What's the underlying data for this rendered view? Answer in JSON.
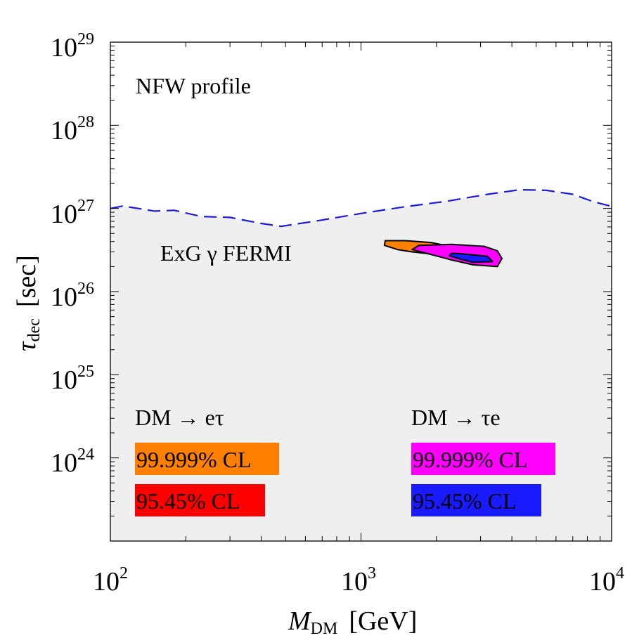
{
  "chart_data": {
    "type": "contour",
    "title": "",
    "xlabel": {
      "main": "M",
      "sub": "DM",
      "unit": "[GeV]"
    },
    "ylabel": {
      "main": "τ",
      "sub": "dec",
      "unit": "[sec]"
    },
    "xscale": "log",
    "yscale": "log",
    "xlim": [
      100,
      10000
    ],
    "ylim": [
      1e+23,
      1e+29
    ],
    "x_ticks": [
      {
        "base": "10",
        "exp": "2"
      },
      {
        "base": "10",
        "exp": "3"
      },
      {
        "base": "10",
        "exp": "4"
      }
    ],
    "y_ticks": [
      {
        "base": "10",
        "exp": "24"
      },
      {
        "base": "10",
        "exp": "25"
      },
      {
        "base": "10",
        "exp": "26"
      },
      {
        "base": "10",
        "exp": "27"
      },
      {
        "base": "10",
        "exp": "28"
      },
      {
        "base": "10",
        "exp": "29"
      }
    ],
    "annotations": {
      "profile": "NFW profile",
      "constraint": "ExG γ FERMI"
    },
    "exclusion_curve": {
      "name": "ExG γ FERMI bound",
      "style": "dashed",
      "color": "#1a1adc",
      "points": [
        [
          100,
          1e+27
        ],
        [
          112,
          1.07e+27
        ],
        [
          150,
          9.3e+26
        ],
        [
          180,
          9.5e+26
        ],
        [
          230,
          8e+26
        ],
        [
          300,
          7.8e+26
        ],
        [
          400,
          6.6e+26
        ],
        [
          480,
          6.1e+26
        ],
        [
          650,
          7e+26
        ],
        [
          1000,
          8.7e+26
        ],
        [
          1500,
          1.05e+27
        ],
        [
          2200,
          1.22e+27
        ],
        [
          3200,
          1.48e+27
        ],
        [
          4300,
          1.68e+27
        ],
        [
          5500,
          1.65e+27
        ],
        [
          7000,
          1.48e+27
        ],
        [
          8500,
          1.2e+27
        ],
        [
          10000,
          1.06e+27
        ]
      ]
    },
    "regions": [
      {
        "name": "DM → eτ 99.999% CL",
        "color": "#ff8000",
        "points": [
          [
            1250,
            4.1e+26
          ],
          [
            1500,
            4.1e+26
          ],
          [
            1900,
            3.9e+26
          ],
          [
            2500,
            3.3e+26
          ],
          [
            2900,
            2.8e+26
          ],
          [
            2700,
            2.5e+26
          ],
          [
            2000,
            2.8e+26
          ],
          [
            1600,
            3e+26
          ],
          [
            1400,
            3.2e+26
          ],
          [
            1240,
            3.6e+26
          ]
        ]
      },
      {
        "name": "DM → τe 99.999% CL",
        "color": "#ff00ff",
        "points": [
          [
            1700,
            3.6e+26
          ],
          [
            2300,
            3.7e+26
          ],
          [
            3100,
            3.5e+26
          ],
          [
            3500,
            3.1e+26
          ],
          [
            3650,
            2.5e+26
          ],
          [
            3500,
            2e+26
          ],
          [
            2800,
            2.1e+26
          ],
          [
            2300,
            2.4e+26
          ],
          [
            1900,
            2.8e+26
          ],
          [
            1600,
            3.2e+26
          ]
        ]
      },
      {
        "name": "DM → τe 95.45% CL",
        "color": "#1a1aff",
        "points": [
          [
            2300,
            2.9e+26
          ],
          [
            2700,
            2.8e+26
          ],
          [
            3200,
            2.65e+26
          ],
          [
            3350,
            2.3e+26
          ],
          [
            2800,
            2.25e+26
          ],
          [
            2500,
            2.45e+26
          ],
          [
            2250,
            2.7e+26
          ]
        ]
      }
    ],
    "legend": {
      "left": {
        "heading": "DM → eτ",
        "items": [
          {
            "label": "99.999% CL",
            "color": "#ff8000"
          },
          {
            "label": "95.45% CL",
            "color": "#ff0000"
          }
        ]
      },
      "right": {
        "heading": "DM → τe",
        "items": [
          {
            "label": "99.999% CL",
            "color": "#ff00ff"
          },
          {
            "label": "95.45% CL",
            "color": "#1a1aff"
          }
        ]
      }
    },
    "colors": {
      "excluded_fill": "#efefef",
      "frame": "#000000"
    }
  }
}
